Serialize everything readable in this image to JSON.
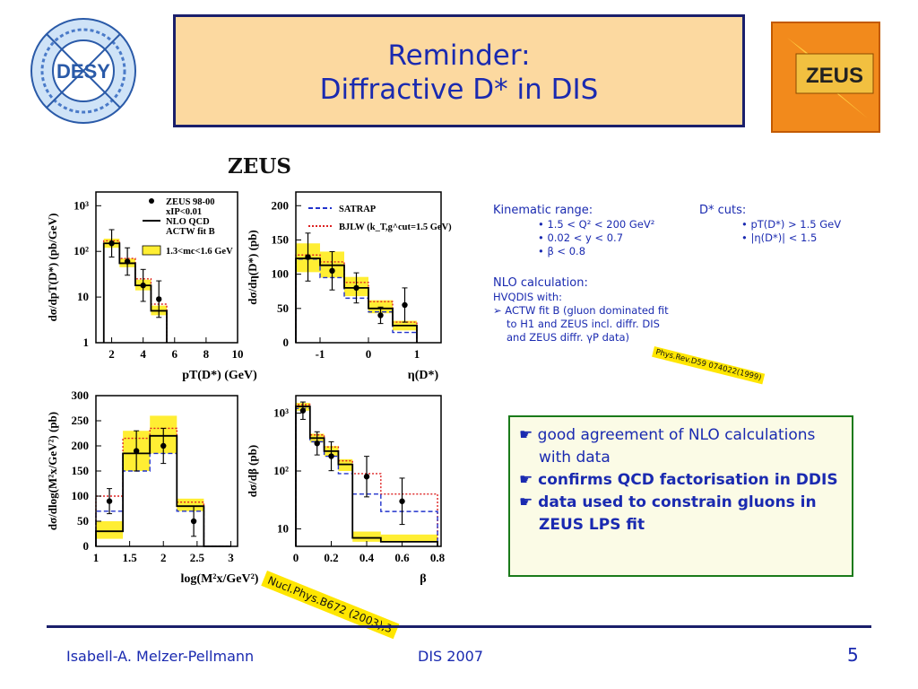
{
  "slide": {
    "title_line1": "Reminder:",
    "title_line2": "Diffractive D* in DIS",
    "logo_left_text": "DESY",
    "logo_right_text": "ZEUS",
    "plots_heading": "ZEUS",
    "kinematic": {
      "header": "Kinematic range:",
      "items": [
        "• 1.5 < Q² < 200 GeV²",
        "• 0.02 < y < 0.7",
        "• β < 0.8"
      ]
    },
    "cuts": {
      "header": "D* cuts:",
      "items": [
        "• pT(D*) > 1.5 GeV",
        "• |η(D*)| < 1.5"
      ]
    },
    "nlo": {
      "header": "NLO calculation:",
      "line1": "HVQDIS with:",
      "line2": "ACTW fit B (gluon dominated fit",
      "line3": "to H1 and ZEUS incl. diffr. DIS",
      "line4": "and ZEUS diffr. γP data)"
    },
    "ref1": "Phys.Rev.D59 074022(1999)",
    "ref2": "Nucl.Phys.B672 (2003),3",
    "conclusions": [
      {
        "text": "good agreement of NLO calculations with data",
        "bold": false
      },
      {
        "text": "confirms QCD factorisation in DDIS",
        "bold": true
      },
      {
        "text": "data used to constrain gluons in ZEUS LPS fit",
        "bold": true
      }
    ],
    "bullet_symbol": "☛",
    "footer_author": "Isabell-A. Melzer-Pellmann",
    "footer_conf": "DIS 2007",
    "page_number": "5",
    "colors": {
      "title_bg": "#fcd9a0",
      "text_blue": "#1a2ab0",
      "band": "#ffee33",
      "nlo_red": "#dd2222",
      "satrap_blue": "#2233cc"
    }
  },
  "chart_data": [
    {
      "type": "bar",
      "id": "pt",
      "xlabel": "pT(D*) (GeV)",
      "ylabel": "dσ/dpT(D*) (pb/GeV)",
      "xlim": [
        1,
        10
      ],
      "ylog": true,
      "ylim": [
        1,
        2000
      ],
      "xticks": [
        2,
        4,
        6,
        8,
        10
      ],
      "yticks": [
        {
          "v": 1,
          "l": "1"
        },
        {
          "v": 10,
          "l": "10"
        },
        {
          "v": 100,
          "l": "10²"
        },
        {
          "v": 1000,
          "l": "10³"
        }
      ],
      "bins": [
        1.5,
        2.5,
        3.5,
        4.5,
        5.5
      ],
      "data": {
        "x": [
          2,
          3,
          4,
          5
        ],
        "y": [
          150,
          60,
          18,
          9
        ],
        "err": [
          0.3,
          0.3,
          0.35,
          0.4
        ]
      },
      "nlo": [
        150,
        55,
        18,
        5
      ],
      "band_lo": [
        120,
        45,
        14,
        4
      ],
      "band_hi": [
        190,
        70,
        24,
        6.5
      ],
      "nlo_red": [
        170,
        70,
        25,
        7
      ],
      "legend": [
        "ZEUS 98-00",
        "xIP<0.01",
        "NLO QCD",
        "ACTW fit B",
        "1.3<mc<1.6 GeV"
      ]
    },
    {
      "type": "bar",
      "id": "eta",
      "xlabel": "η(D*)",
      "ylabel": "dσ/dη(D*) (pb)",
      "xlim": [
        -1.5,
        1.5
      ],
      "ylog": false,
      "ylim": [
        0,
        220
      ],
      "xticks": [
        -1,
        0,
        1
      ],
      "yticks": [
        {
          "v": 0,
          "l": "0"
        },
        {
          "v": 50,
          "l": "50"
        },
        {
          "v": 100,
          "l": "100"
        },
        {
          "v": 150,
          "l": "150"
        },
        {
          "v": 200,
          "l": "200"
        }
      ],
      "bins": [
        -1.5,
        -1.0,
        -0.5,
        0.0,
        0.5,
        1.0,
        1.5
      ],
      "data": {
        "x": [
          -1.25,
          -0.75,
          -0.25,
          0.25,
          0.75,
          1.25
        ],
        "y": [
          125,
          105,
          80,
          40,
          55,
          0
        ],
        "err": [
          35,
          28,
          22,
          12,
          25,
          0
        ]
      },
      "nlo": [
        123,
        113,
        80,
        50,
        25
      ],
      "band_lo": [
        103,
        95,
        68,
        43,
        18
      ],
      "band_hi": [
        145,
        133,
        96,
        62,
        32
      ],
      "nlo_red": [
        128,
        118,
        88,
        60,
        30
      ],
      "satrap": [
        122,
        95,
        65,
        45,
        15
      ],
      "legend": [
        "SATRAP",
        "BJLW (k_T,g^cut=1.5 GeV)"
      ]
    },
    {
      "type": "bar",
      "id": "mx",
      "xlabel": "log(M²x/GeV²)",
      "ylabel": "dσ/dlog(M²x/GeV²) (pb)",
      "xlim": [
        1,
        3.1
      ],
      "ylog": false,
      "ylim": [
        0,
        300
      ],
      "xticks": [
        1,
        1.5,
        2,
        2.5,
        3
      ],
      "yticks": [
        {
          "v": 0,
          "l": "0"
        },
        {
          "v": 50,
          "l": "50"
        },
        {
          "v": 100,
          "l": "100"
        },
        {
          "v": 150,
          "l": "150"
        },
        {
          "v": 200,
          "l": "200"
        },
        {
          "v": 250,
          "l": "250"
        },
        {
          "v": 300,
          "l": "300"
        }
      ],
      "bins": [
        1.0,
        1.4,
        1.8,
        2.2,
        2.6,
        3.0
      ],
      "data": {
        "x": [
          1.2,
          1.6,
          2.0,
          2.45,
          2.8
        ],
        "y": [
          90,
          190,
          200,
          50,
          0
        ],
        "err": [
          25,
          40,
          35,
          30,
          0
        ]
      },
      "nlo": [
        30,
        185,
        220,
        80,
        0
      ],
      "band_lo": [
        15,
        150,
        185,
        70,
        0
      ],
      "band_hi": [
        50,
        230,
        260,
        95,
        0
      ],
      "nlo_red": [
        100,
        215,
        235,
        88,
        0
      ],
      "satrap": [
        70,
        150,
        185,
        70,
        0
      ]
    },
    {
      "type": "bar",
      "id": "beta",
      "xlabel": "β",
      "ylabel": "dσ/dβ (pb)",
      "xlim": [
        0,
        0.82
      ],
      "ylog": true,
      "ylim": [
        5,
        2000
      ],
      "xticks": [
        0,
        0.2,
        0.4,
        0.6,
        0.8
      ],
      "yticks": [
        {
          "v": 10,
          "l": "10"
        },
        {
          "v": 100,
          "l": "10²"
        },
        {
          "v": 1000,
          "l": "10³"
        }
      ],
      "bins": [
        0.0,
        0.08,
        0.16,
        0.24,
        0.32,
        0.48,
        0.8
      ],
      "data": {
        "x": [
          0.04,
          0.12,
          0.2,
          0.28,
          0.4,
          0.6
        ],
        "y": [
          1100,
          300,
          180,
          0,
          80,
          30
        ],
        "err": [
          0.15,
          0.2,
          0.25,
          0,
          0.35,
          0.4
        ]
      },
      "nlo": [
        1300,
        370,
        220,
        130,
        7,
        6
      ],
      "band_lo": [
        1100,
        310,
        180,
        100,
        6,
        6
      ],
      "band_hi": [
        1500,
        440,
        270,
        160,
        9,
        8
      ],
      "nlo_red": [
        1400,
        420,
        260,
        150,
        90,
        40
      ],
      "satrap": [
        1200,
        320,
        180,
        90,
        40,
        20
      ]
    }
  ]
}
